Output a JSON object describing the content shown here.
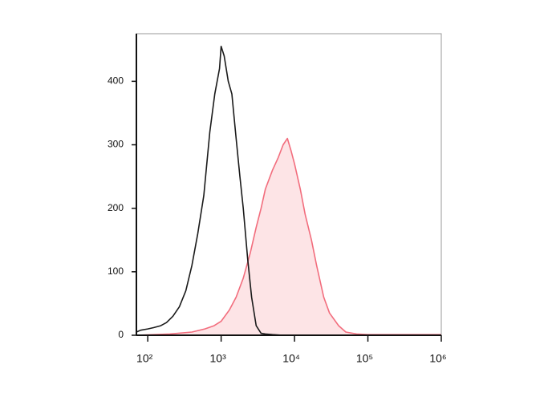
{
  "chart_data": {
    "type": "line",
    "xscale": "log",
    "xlim": [
      70,
      1000000
    ],
    "ylim": [
      0,
      475
    ],
    "xticks": [
      {
        "value": 100,
        "label": "10²"
      },
      {
        "value": 1000,
        "label": "10³"
      },
      {
        "value": 10000,
        "label": "10⁴"
      },
      {
        "value": 100000,
        "label": "10⁵"
      },
      {
        "value": 1000000,
        "label": "10⁶"
      }
    ],
    "yticks": [
      0,
      100,
      200,
      300,
      400
    ],
    "series": [
      {
        "color": "#f26d7d",
        "fill": "#fde4e6",
        "x": [
          70,
          200,
          400,
          600,
          800,
          1000,
          1300,
          1600,
          2000,
          2500,
          3000,
          3500,
          4000,
          5000,
          6000,
          7000,
          8000,
          9000,
          10000,
          12000,
          14000,
          17000,
          20000,
          25000,
          30000,
          40000,
          50000,
          70000,
          100000,
          1000000
        ],
        "values": [
          0,
          2,
          5,
          10,
          15,
          22,
          40,
          60,
          90,
          130,
          170,
          200,
          230,
          260,
          280,
          300,
          310,
          290,
          270,
          230,
          190,
          150,
          110,
          60,
          35,
          15,
          5,
          2,
          1,
          1
        ]
      },
      {
        "color": "#1a1a1a",
        "x": [
          70,
          80,
          100,
          120,
          150,
          180,
          220,
          270,
          330,
          400,
          480,
          580,
          700,
          820,
          950,
          1000,
          1100,
          1250,
          1400,
          1600,
          1800,
          2000,
          2300,
          2600,
          3000,
          3500,
          4000,
          5000,
          7000,
          10000,
          20000,
          50000,
          100000,
          1000000
        ],
        "values": [
          5,
          8,
          10,
          12,
          15,
          20,
          30,
          45,
          70,
          110,
          160,
          220,
          320,
          380,
          420,
          455,
          440,
          400,
          380,
          310,
          250,
          200,
          120,
          60,
          15,
          3,
          2,
          1,
          0,
          0,
          0,
          0,
          0,
          0
        ]
      }
    ]
  }
}
